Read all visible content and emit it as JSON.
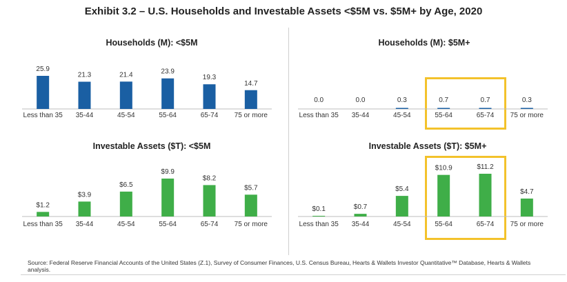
{
  "title": "Exhibit 3.2 – U.S. Households and Investable Assets <$5M vs. $5M+ by Age, 2020",
  "source": "Source: Federal Reserve Financial Accounts of the United States (Z.1), Survey of Consumer Finances, U.S. Census Bureau, Hearts & Wallets Investor Quantitative™ Database, Hearts & Wallets analysis.",
  "colors": {
    "blue": "#1a5fa3",
    "green": "#3fae48",
    "highlight": "#f3c22b"
  },
  "chart_data": [
    {
      "id": "hh_lt5m",
      "type": "bar",
      "title": "Households (M): <$5M",
      "categories": [
        "Less than 35",
        "35-44",
        "45-54",
        "55-64",
        "65-74",
        "75 or more"
      ],
      "values": [
        25.9,
        21.3,
        21.4,
        23.9,
        19.3,
        14.7
      ],
      "labels": [
        "25.9",
        "21.3",
        "21.4",
        "23.9",
        "19.3",
        "14.7"
      ],
      "ylim": [
        0,
        25.9
      ],
      "color": "blue",
      "highlight": []
    },
    {
      "id": "hh_5mplus",
      "type": "bar",
      "title": "Households (M): $5M+",
      "categories": [
        "Less than 35",
        "35-44",
        "45-54",
        "55-64",
        "65-74",
        "75 or more"
      ],
      "values": [
        0.0,
        0.0,
        0.3,
        0.7,
        0.7,
        0.3
      ],
      "labels": [
        "0.0",
        "0.0",
        "0.3",
        "0.7",
        "0.7",
        "0.3"
      ],
      "ylim": [
        0,
        25.9
      ],
      "color": "blue",
      "highlight": [
        3,
        4
      ]
    },
    {
      "id": "ia_lt5m",
      "type": "bar",
      "title": "Investable Assets ($T): <$5M",
      "categories": [
        "Less than 35",
        "35-44",
        "45-54",
        "55-64",
        "65-74",
        "75 or more"
      ],
      "values": [
        1.2,
        3.9,
        6.5,
        9.9,
        8.2,
        5.7
      ],
      "labels": [
        "$1.2",
        "$3.9",
        "$6.5",
        "$9.9",
        "$8.2",
        "$5.7"
      ],
      "ylim": [
        0,
        9.9
      ],
      "color": "green",
      "highlight": []
    },
    {
      "id": "ia_5mplus",
      "type": "bar",
      "title": "Investable Assets ($T): $5M+",
      "categories": [
        "Less than 35",
        "35-44",
        "45-54",
        "55-64",
        "65-74",
        "75 or more"
      ],
      "values": [
        0.1,
        0.7,
        5.4,
        10.9,
        11.2,
        4.7
      ],
      "labels": [
        "$0.1",
        "$0.7",
        "$5.4",
        "$10.9",
        "$11.2",
        "$4.7"
      ],
      "ylim": [
        0,
        11.2
      ],
      "color": "green",
      "highlight": [
        3,
        4
      ]
    }
  ]
}
